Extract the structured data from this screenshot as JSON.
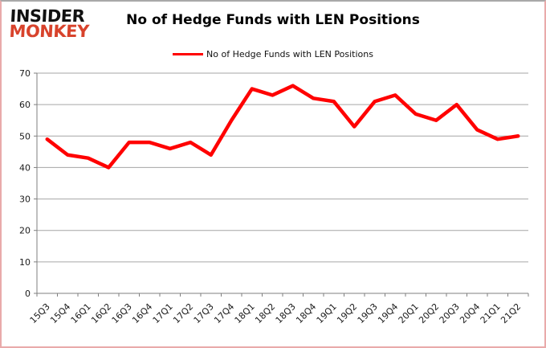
{
  "logo": {
    "line1": "INSIDER",
    "line2": "MONKEY"
  },
  "header": {
    "title": "No of Hedge Funds with LEN Positions"
  },
  "legend": {
    "label": "No of Hedge Funds with LEN Positions"
  },
  "colors": {
    "series_red": "#ff0000",
    "logo_red": "#d8432c",
    "gridline_gray": "#a6a6a6",
    "axis_gray": "#7f7f7f",
    "label_black": "#1a1a1a",
    "border_pink": "#e9aaaa"
  },
  "chart_data": {
    "type": "line",
    "title": "No of Hedge Funds with LEN Positions",
    "xlabel": "",
    "ylabel": "",
    "categories": [
      "15Q3",
      "15Q4",
      "16Q1",
      "16Q2",
      "16Q3",
      "16Q4",
      "17Q1",
      "17Q2",
      "17Q3",
      "17Q4",
      "18Q1",
      "18Q2",
      "18Q3",
      "18Q4",
      "19Q1",
      "19Q2",
      "19Q3",
      "19Q4",
      "20Q1",
      "20Q2",
      "20Q3",
      "20Q4",
      "21Q1",
      "21Q2"
    ],
    "series": [
      {
        "name": "No of Hedge Funds with LEN Positions",
        "color": "#ff0000",
        "values": [
          49,
          44,
          43,
          40,
          48,
          48,
          46,
          48,
          44,
          55,
          65,
          63,
          66,
          62,
          61,
          53,
          61,
          63,
          57,
          55,
          60,
          52,
          49,
          50
        ]
      }
    ],
    "ylim": [
      0,
      70
    ],
    "ytick_interval": 10,
    "grid": true,
    "legend_position": "top-center"
  }
}
